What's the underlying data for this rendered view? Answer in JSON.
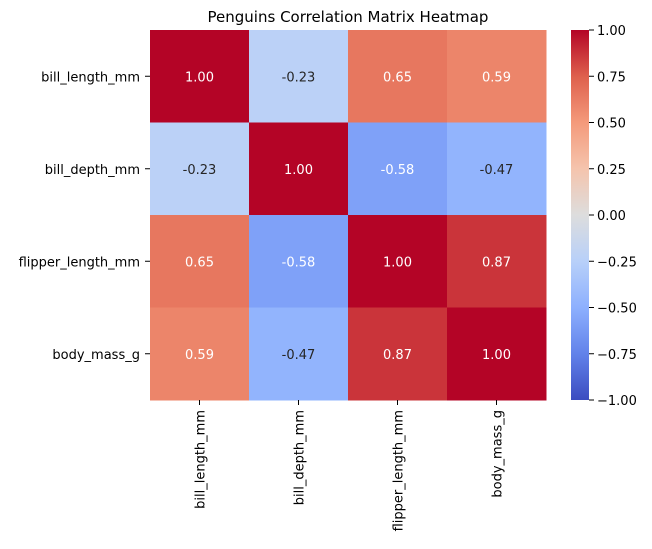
{
  "chart_data": {
    "type": "heatmap",
    "title": "Penguins Correlation Matrix Heatmap",
    "xlabel": "",
    "ylabel": "",
    "row_labels": [
      "bill_length_mm",
      "bill_depth_mm",
      "flipper_length_mm",
      "body_mass_g"
    ],
    "col_labels": [
      "bill_length_mm",
      "bill_depth_mm",
      "flipper_length_mm",
      "body_mass_g"
    ],
    "values": [
      [
        1.0,
        -0.23,
        0.65,
        0.59
      ],
      [
        -0.23,
        1.0,
        -0.58,
        -0.47
      ],
      [
        0.65,
        -0.58,
        1.0,
        0.87
      ],
      [
        0.59,
        -0.47,
        0.87,
        1.0
      ]
    ],
    "value_format": "0.00",
    "colormap": "coolwarm",
    "vmin": -1.0,
    "vmax": 1.0,
    "colorbar_ticks": [
      "1.00",
      "0.75",
      "0.50",
      "0.25",
      "0.00",
      "−0.25",
      "−0.50",
      "−0.75",
      "−1.00"
    ],
    "colorbar_tick_values": [
      1.0,
      0.75,
      0.5,
      0.25,
      0.0,
      -0.25,
      -0.5,
      -0.75,
      -1.0
    ],
    "grid": false,
    "colorbar_placement": "right"
  }
}
